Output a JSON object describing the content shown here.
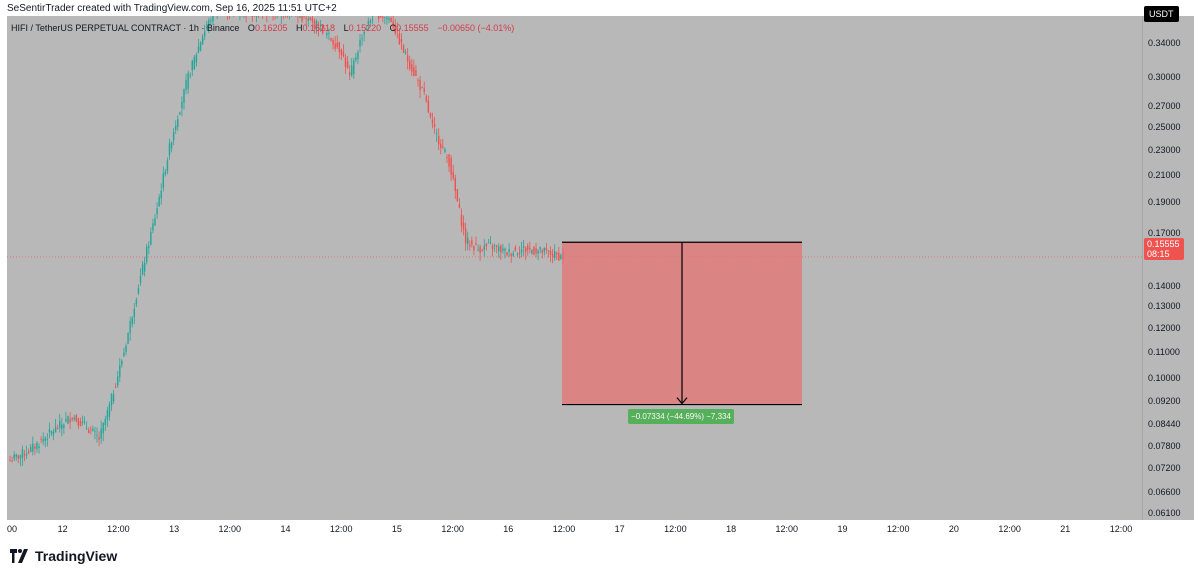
{
  "header": {
    "credit": "SeSentirTrader created with TradingView.com, Sep 16, 2025 11:51 UTC+2"
  },
  "legend": {
    "symbol": "HIFI / TetherUS PERPETUAL CONTRACT · 1h · Binance",
    "open_label": "O",
    "open": "0.16205",
    "high_label": "H",
    "high": "0.16218",
    "low_label": "L",
    "low": "0.15220",
    "close_label": "C",
    "close": "0.15555",
    "change": "−0.00650 (−4.01%)"
  },
  "price_axis": {
    "currency": "USDT",
    "last_price": "0.15555",
    "countdown": "08:15"
  },
  "measure": {
    "label": "−0.07334 (−44.69%) −7,334"
  },
  "brand": {
    "name": "TradingView"
  },
  "colors": {
    "background": "#b8b8b8",
    "up_candle": "#26a69a",
    "down_candle": "#ef5350",
    "measure_box": "#e57373",
    "measure_label": "#4caf50"
  },
  "chart_data": {
    "type": "candlestick",
    "scale": "log",
    "ylim": [
      0.0595,
      0.375
    ],
    "y_ticks": [
      0.34,
      0.3,
      0.27,
      0.25,
      0.23,
      0.21,
      0.19,
      0.17,
      0.14,
      0.13,
      0.12,
      0.11,
      0.1,
      0.092,
      0.0844,
      0.078,
      0.072,
      0.066,
      0.061
    ],
    "y_tick_labels": [
      "0.34000",
      "0.30000",
      "0.27000",
      "0.25000",
      "0.23000",
      "0.21000",
      "0.19000",
      "0.17000",
      "0.14000",
      "0.13000",
      "0.12000",
      "0.11000",
      "0.10000",
      "0.09200",
      "0.08440",
      "0.07800",
      "0.07200",
      "0.06600",
      "0.06100"
    ],
    "x_ticks": [
      "00",
      "12",
      "12:00",
      "13",
      "12:00",
      "14",
      "12:00",
      "15",
      "12:00",
      "16",
      "12:00",
      "17",
      "12:00",
      "18",
      "12:00",
      "19",
      "12:00",
      "20",
      "12:00",
      "21",
      "12:00"
    ],
    "series_pivots": [
      [
        0,
        0.074
      ],
      [
        10,
        0.077
      ],
      [
        20,
        0.082
      ],
      [
        30,
        0.087
      ],
      [
        38,
        0.083
      ],
      [
        43,
        0.08
      ],
      [
        48,
        0.09
      ],
      [
        55,
        0.11
      ],
      [
        62,
        0.14
      ],
      [
        70,
        0.18
      ],
      [
        78,
        0.24
      ],
      [
        86,
        0.3
      ],
      [
        93,
        0.35
      ],
      [
        100,
        0.39
      ],
      [
        112,
        0.38
      ],
      [
        124,
        0.38
      ],
      [
        136,
        0.38
      ],
      [
        150,
        0.36
      ],
      [
        160,
        0.33
      ],
      [
        164,
        0.3
      ],
      [
        170,
        0.35
      ],
      [
        176,
        0.38
      ],
      [
        184,
        0.37
      ],
      [
        190,
        0.33
      ],
      [
        196,
        0.3
      ],
      [
        200,
        0.28
      ],
      [
        204,
        0.25
      ],
      [
        208,
        0.235
      ],
      [
        212,
        0.22
      ],
      [
        216,
        0.19
      ],
      [
        220,
        0.165
      ],
      [
        226,
        0.16
      ],
      [
        232,
        0.162
      ],
      [
        240,
        0.158
      ],
      [
        248,
        0.16
      ],
      [
        256,
        0.159
      ],
      [
        262,
        0.157
      ],
      [
        267,
        0.15555
      ]
    ],
    "last_price": 0.15555,
    "measure_box": {
      "top_price": 0.1641,
      "bottom_price": 0.0907,
      "change": -0.07334,
      "change_pct": -44.69,
      "ticks": -7334
    }
  }
}
